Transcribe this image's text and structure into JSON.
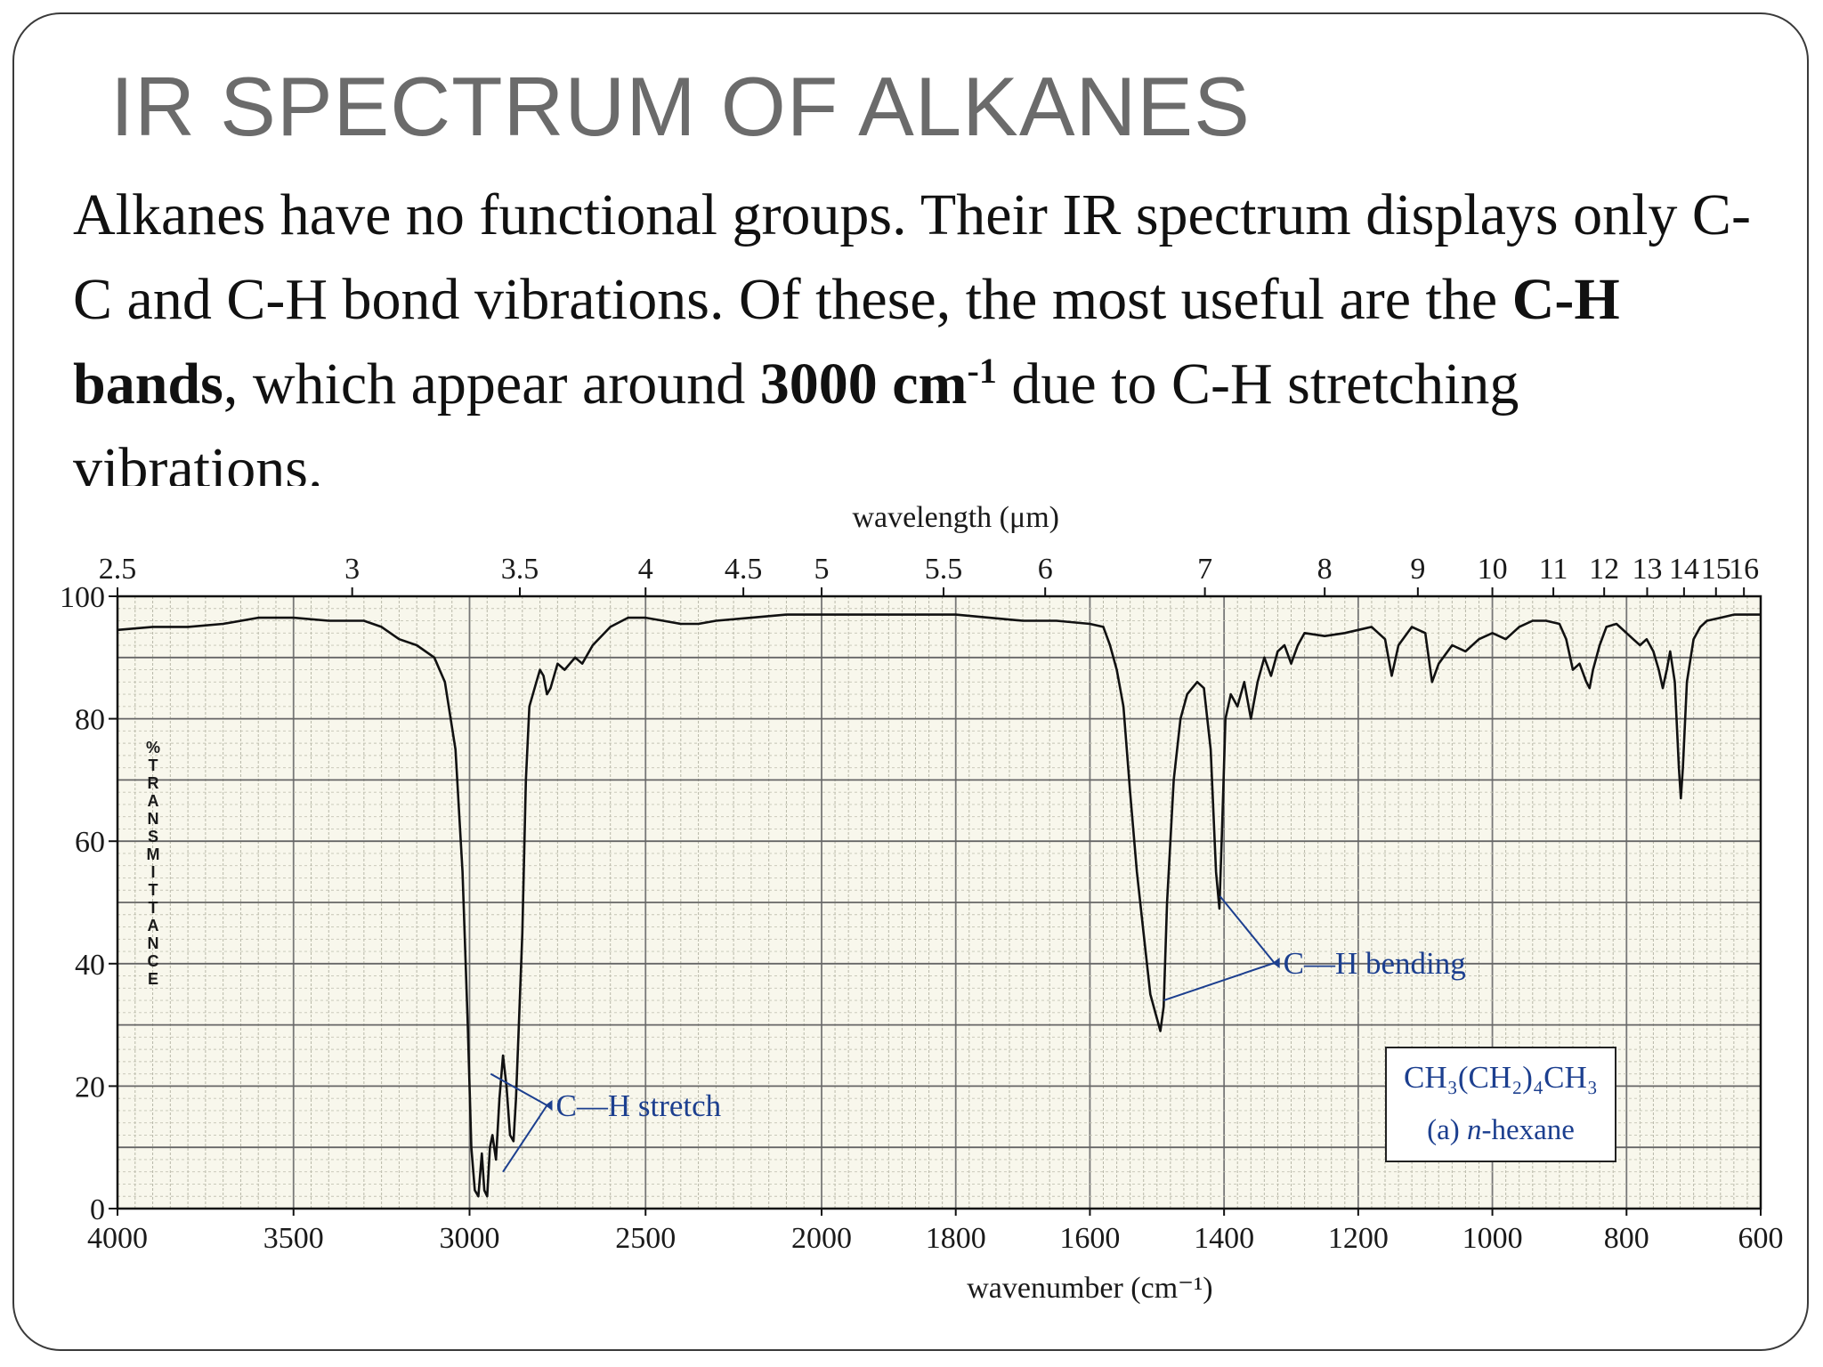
{
  "slide": {
    "title": "IR SPECTRUM OF ALKANES",
    "body_intro": "Alkanes have no functional groups. Their IR spectrum displays only C-C and C-H bond vibrations. Of these, the most useful are the ",
    "body_bold1": "C-H bands",
    "body_mid": ", which appear around ",
    "body_bold2": "3000 cm",
    "body_sup": "-1",
    "body_end": " due to C-H stretching vibrations."
  },
  "chart_data": {
    "type": "line",
    "title": "",
    "xlabel": "wavenumber (cm⁻¹)",
    "top_xlabel": "wavelength (μm)",
    "ylabel": "% TRANSMITTANCE",
    "xlim": [
      4000,
      600
    ],
    "ylim": [
      0,
      100
    ],
    "x_scale": "split-linear: 4000-2000 at half scale, 2000-600 at full scale",
    "grid": true,
    "bottom_ticks": [
      4000,
      3500,
      3000,
      2500,
      2000,
      1800,
      1600,
      1400,
      1200,
      1000,
      800,
      600
    ],
    "top_ticks": [
      "2.5",
      "3",
      "3.5",
      "4",
      "4.5",
      "5",
      "5.5",
      "6",
      "7",
      "8",
      "9",
      "10",
      "11",
      "12",
      "13",
      "14",
      "15",
      "16"
    ],
    "y_ticks": [
      0,
      20,
      40,
      60,
      80,
      100
    ],
    "annotations": [
      {
        "label": "C—H stretch",
        "points_to_wavenumbers": [
          2960,
          2870
        ]
      },
      {
        "label": "C—H bending",
        "points_to_wavenumbers": [
          1465,
          1380
        ]
      }
    ],
    "compound_formula": "CH₃(CH₂)₄CH₃",
    "compound_name_prefix": "(a) ",
    "compound_name_italic": "n",
    "compound_name_suffix": "-hexane",
    "series": [
      {
        "color": "#111111",
        "points": [
          [
            4000,
            94.5
          ],
          [
            3900,
            95
          ],
          [
            3800,
            95
          ],
          [
            3700,
            95.5
          ],
          [
            3600,
            96.5
          ],
          [
            3500,
            96.5
          ],
          [
            3400,
            96
          ],
          [
            3300,
            96
          ],
          [
            3250,
            95
          ],
          [
            3200,
            93
          ],
          [
            3150,
            92
          ],
          [
            3100,
            90
          ],
          [
            3070,
            86
          ],
          [
            3040,
            75
          ],
          [
            3020,
            55
          ],
          [
            3005,
            30
          ],
          [
            2995,
            10
          ],
          [
            2985,
            3
          ],
          [
            2975,
            2
          ],
          [
            2965,
            9
          ],
          [
            2958,
            3
          ],
          [
            2950,
            2
          ],
          [
            2942,
            10
          ],
          [
            2935,
            12
          ],
          [
            2925,
            8
          ],
          [
            2915,
            18
          ],
          [
            2905,
            25
          ],
          [
            2895,
            20
          ],
          [
            2885,
            12
          ],
          [
            2875,
            11
          ],
          [
            2868,
            18
          ],
          [
            2860,
            30
          ],
          [
            2850,
            45
          ],
          [
            2840,
            70
          ],
          [
            2830,
            82
          ],
          [
            2810,
            86
          ],
          [
            2800,
            88
          ],
          [
            2790,
            87
          ],
          [
            2780,
            84
          ],
          [
            2770,
            85
          ],
          [
            2750,
            89
          ],
          [
            2730,
            88
          ],
          [
            2700,
            90
          ],
          [
            2680,
            89
          ],
          [
            2650,
            92
          ],
          [
            2600,
            95
          ],
          [
            2550,
            96.5
          ],
          [
            2500,
            96.5
          ],
          [
            2450,
            96
          ],
          [
            2400,
            95.5
          ],
          [
            2350,
            95.5
          ],
          [
            2300,
            96
          ],
          [
            2200,
            96.5
          ],
          [
            2100,
            97
          ],
          [
            2000,
            97
          ],
          [
            1950,
            97
          ],
          [
            1900,
            97
          ],
          [
            1850,
            97
          ],
          [
            1800,
            97
          ],
          [
            1750,
            96.5
          ],
          [
            1700,
            96
          ],
          [
            1650,
            96
          ],
          [
            1600,
            95.5
          ],
          [
            1580,
            95
          ],
          [
            1570,
            92
          ],
          [
            1560,
            88
          ],
          [
            1550,
            82
          ],
          [
            1540,
            68
          ],
          [
            1530,
            55
          ],
          [
            1520,
            45
          ],
          [
            1510,
            35
          ],
          [
            1500,
            31
          ],
          [
            1495,
            29
          ],
          [
            1490,
            33
          ],
          [
            1485,
            50
          ],
          [
            1475,
            70
          ],
          [
            1465,
            80
          ],
          [
            1455,
            84
          ],
          [
            1440,
            86
          ],
          [
            1430,
            85
          ],
          [
            1420,
            75
          ],
          [
            1412,
            55
          ],
          [
            1407,
            49
          ],
          [
            1403,
            62
          ],
          [
            1398,
            80
          ],
          [
            1390,
            84
          ],
          [
            1380,
            82
          ],
          [
            1370,
            86
          ],
          [
            1360,
            80
          ],
          [
            1350,
            86
          ],
          [
            1340,
            90
          ],
          [
            1330,
            87
          ],
          [
            1320,
            91
          ],
          [
            1310,
            92
          ],
          [
            1300,
            89
          ],
          [
            1290,
            92
          ],
          [
            1280,
            94
          ],
          [
            1250,
            93.5
          ],
          [
            1220,
            94
          ],
          [
            1200,
            94.5
          ],
          [
            1180,
            95
          ],
          [
            1160,
            93
          ],
          [
            1150,
            87
          ],
          [
            1140,
            92
          ],
          [
            1120,
            95
          ],
          [
            1100,
            94
          ],
          [
            1090,
            86
          ],
          [
            1080,
            89
          ],
          [
            1060,
            92
          ],
          [
            1040,
            91
          ],
          [
            1020,
            93
          ],
          [
            1000,
            94
          ],
          [
            980,
            93
          ],
          [
            960,
            95
          ],
          [
            940,
            96
          ],
          [
            920,
            96
          ],
          [
            900,
            95.5
          ],
          [
            890,
            93
          ],
          [
            880,
            88
          ],
          [
            870,
            89
          ],
          [
            860,
            86
          ],
          [
            855,
            85
          ],
          [
            850,
            88
          ],
          [
            840,
            92
          ],
          [
            830,
            95
          ],
          [
            815,
            95.5
          ],
          [
            800,
            94
          ],
          [
            790,
            93
          ],
          [
            780,
            92
          ],
          [
            770,
            93
          ],
          [
            760,
            91
          ],
          [
            752,
            88
          ],
          [
            746,
            85
          ],
          [
            740,
            88
          ],
          [
            735,
            91
          ],
          [
            728,
            86
          ],
          [
            722,
            72
          ],
          [
            719,
            67
          ],
          [
            716,
            72
          ],
          [
            710,
            86
          ],
          [
            700,
            93
          ],
          [
            690,
            95
          ],
          [
            680,
            96
          ],
          [
            660,
            96.5
          ],
          [
            640,
            97
          ],
          [
            620,
            97
          ],
          [
            600,
            97
          ]
        ]
      }
    ]
  }
}
